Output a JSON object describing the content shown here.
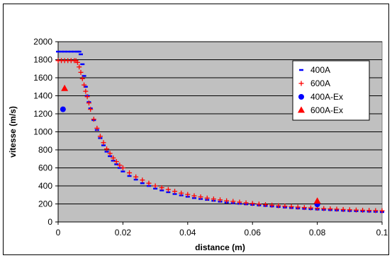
{
  "chart_data": {
    "type": "scatter",
    "xlabel": "distance (m)",
    "ylabel": "vitesse (m/s)",
    "xlim": [
      0,
      0.1
    ],
    "ylim": [
      0,
      2000
    ],
    "x_ticks": [
      "0",
      "0.02",
      "0.04",
      "0.06",
      "0.08",
      "0.1"
    ],
    "y_ticks": [
      "0",
      "200",
      "400",
      "600",
      "800",
      "1000",
      "1200",
      "1400",
      "1600",
      "1800",
      "2000"
    ],
    "grid": true,
    "plot_background": "#c0c0c0",
    "legend_position": "right",
    "series": [
      {
        "name": "400A",
        "marker": "dash",
        "color": "#0000ff",
        "x": [
          0.0,
          0.001,
          0.002,
          0.003,
          0.004,
          0.005,
          0.006,
          0.0065,
          0.007,
          0.0075,
          0.008,
          0.0085,
          0.009,
          0.0095,
          0.01,
          0.011,
          0.012,
          0.013,
          0.014,
          0.015,
          0.016,
          0.017,
          0.018,
          0.019,
          0.02,
          0.022,
          0.024,
          0.026,
          0.028,
          0.03,
          0.032,
          0.034,
          0.036,
          0.038,
          0.04,
          0.042,
          0.044,
          0.046,
          0.048,
          0.05,
          0.052,
          0.054,
          0.056,
          0.058,
          0.06,
          0.062,
          0.064,
          0.066,
          0.068,
          0.07,
          0.072,
          0.074,
          0.076,
          0.078,
          0.08,
          0.082,
          0.084,
          0.086,
          0.088,
          0.09,
          0.092,
          0.094,
          0.096,
          0.098,
          0.1
        ],
        "y": [
          1890,
          1890,
          1890,
          1890,
          1890,
          1890,
          1890,
          1890,
          1860,
          1750,
          1620,
          1500,
          1400,
          1330,
          1260,
          1130,
          1020,
          930,
          850,
          780,
          730,
          680,
          640,
          600,
          560,
          510,
          470,
          430,
          400,
          370,
          350,
          330,
          310,
          295,
          280,
          265,
          255,
          245,
          235,
          225,
          215,
          208,
          202,
          196,
          190,
          184,
          178,
          172,
          166,
          160,
          155,
          150,
          146,
          142,
          138,
          135,
          132,
          128,
          125,
          122,
          120,
          118,
          115,
          113,
          110
        ]
      },
      {
        "name": "600A",
        "marker": "plus",
        "color": "#ff0000",
        "x": [
          0.0,
          0.001,
          0.002,
          0.003,
          0.004,
          0.005,
          0.0055,
          0.006,
          0.0065,
          0.007,
          0.0075,
          0.008,
          0.0085,
          0.009,
          0.0095,
          0.01,
          0.011,
          0.012,
          0.013,
          0.014,
          0.015,
          0.016,
          0.017,
          0.018,
          0.019,
          0.02,
          0.022,
          0.024,
          0.026,
          0.028,
          0.03,
          0.032,
          0.034,
          0.036,
          0.038,
          0.04,
          0.042,
          0.044,
          0.046,
          0.048,
          0.05,
          0.052,
          0.054,
          0.056,
          0.058,
          0.06,
          0.062,
          0.064,
          0.066,
          0.068,
          0.07,
          0.072,
          0.074,
          0.076,
          0.078,
          0.08,
          0.082,
          0.084,
          0.086,
          0.088,
          0.09,
          0.092,
          0.094,
          0.096,
          0.098,
          0.1
        ],
        "y": [
          1790,
          1790,
          1790,
          1790,
          1790,
          1790,
          1790,
          1770,
          1720,
          1660,
          1590,
          1520,
          1450,
          1390,
          1320,
          1250,
          1140,
          1040,
          950,
          880,
          810,
          760,
          710,
          670,
          630,
          600,
          545,
          500,
          465,
          430,
          400,
          380,
          360,
          340,
          320,
          305,
          290,
          278,
          265,
          255,
          245,
          235,
          228,
          220,
          212,
          205,
          198,
          192,
          186,
          180,
          175,
          170,
          165,
          160,
          156,
          152,
          148,
          145,
          142,
          138,
          135,
          132,
          130,
          128,
          126,
          124
        ]
      },
      {
        "name": "400A-Ex",
        "marker": "circle",
        "color": "#0000ff",
        "x": [
          0.0015,
          0.08
        ],
        "y": [
          1250,
          195
        ]
      },
      {
        "name": "600A-Ex",
        "marker": "triangle",
        "color": "#ff0000",
        "x": [
          0.002,
          0.08
        ],
        "y": [
          1480,
          230
        ]
      }
    ]
  }
}
